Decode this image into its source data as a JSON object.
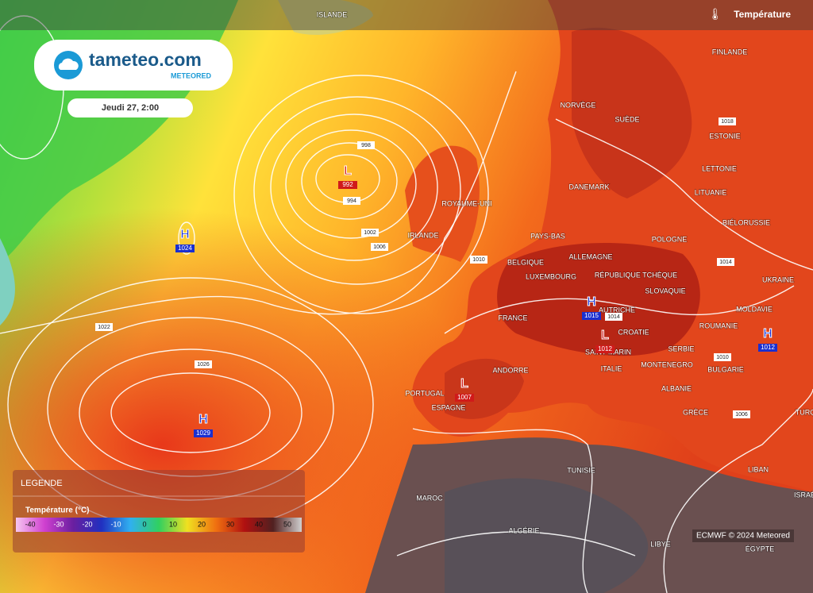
{
  "header": {
    "brand": "tameteo.com",
    "sub_brand": "METEORED",
    "date": "Jeudi 27, 2:00",
    "layer": "Température"
  },
  "pressure_centers": [
    {
      "type": "L",
      "value": 992
    },
    {
      "type": "H",
      "value": 1024
    },
    {
      "type": "H",
      "value": 1029
    },
    {
      "type": "L",
      "value": 1007
    },
    {
      "type": "H",
      "value": 1015
    },
    {
      "type": "L",
      "value": 1012
    },
    {
      "type": "H",
      "value": 1012
    }
  ],
  "isobar_labels": [
    998,
    994,
    1002,
    1006,
    1010,
    1022,
    1026,
    1014,
    1018,
    1014,
    1010,
    1006
  ],
  "countries": [
    "ISLANDE",
    "FINLANDE",
    "NORVÈGE",
    "SUÈDE",
    "ESTONIE",
    "LETTONIE",
    "DANEMARK",
    "LITUANIE",
    "ROYAUME-UNI",
    "BIÉLORUSSIE",
    "IRLANDE",
    "PAYS-BAS",
    "POLOGNE",
    "BELGIQUE",
    "ALLEMAGNE",
    "LUXEMBOURG",
    "RÉPUBLIQUE TCHÈQUE",
    "UKRAINE",
    "SLOVAQUIE",
    "AUTRICHE",
    "MOLDAVIE",
    "FRANCE",
    "ROUMANIE",
    "CROATIE",
    "SERBIE",
    "SAINT-MARIN",
    "MONTENEGRO",
    "BULGARIE",
    "ITALIE",
    "ANDORRE",
    "ALBANIE",
    "PORTUGAL",
    "ESPAGNE",
    "GRÈCE",
    "TURQUIE",
    "TUNISIE",
    "LIBAN",
    "MAROC",
    "ISRAËL",
    "ALGÉRIE",
    "LIBYE",
    "ÉGYPTE"
  ],
  "legend": {
    "title": "LEGENDE",
    "subtitle": "Température (°C)",
    "scale": [
      -40,
      -30,
      -20,
      -10,
      0,
      10,
      20,
      30,
      40,
      50
    ]
  },
  "credit": "ECMWF © 2024 Meteored"
}
